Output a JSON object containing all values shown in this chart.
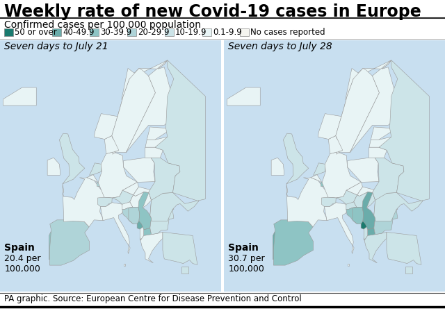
{
  "title": "Weekly rate of new Covid-19 cases in Europe",
  "subtitle": "Confirmed cases per 100,000 population",
  "legend_labels": [
    "50 or over",
    "40-49.9",
    "30-39.9",
    "20-29.9",
    "10-19.9",
    "0.1-9.9",
    "No cases reported"
  ],
  "legend_colors": [
    "#1a7a6e",
    "#6aacaa",
    "#8ec4c4",
    "#afd4d8",
    "#cce4e8",
    "#e8f4f5",
    "#f5f5f0"
  ],
  "map1_title": "Seven days to July 21",
  "map2_title": "Seven days to July 28",
  "map1_spain_label": "Spain",
  "map1_spain_stat": "20.4 per\n100,000",
  "map2_spain_label": "Spain",
  "map2_spain_stat": "30.7 per\n100,000",
  "source": "PA graphic. Source: European Centre for Disease Prevention and Control",
  "bg_color": "#ffffff",
  "map_bg_color": "#c8dff0",
  "title_fontsize": 17,
  "subtitle_fontsize": 10,
  "legend_fontsize": 8.5,
  "map_title_fontsize": 10,
  "source_fontsize": 8.5,
  "rate_to_color": {
    "50+": "#1a7a6e",
    "40-49": "#6aacaa",
    "30-39": "#8ec4c4",
    "20-29": "#afd4d8",
    "10-19": "#cce4e8",
    "0-9": "#e8f4f5",
    "none": "#f0f0eb"
  },
  "countries_july21": {
    "Iceland": "0-9",
    "UK": "10-19",
    "Ireland": "0-9",
    "Portugal": "30-39",
    "Spain": "20-29",
    "France": "0-9",
    "Belgium": "0-9",
    "Netherlands": "10-19",
    "Luxembourg": "20-29",
    "Germany": "0-9",
    "Switzerland": "10-19",
    "Austria": "10-19",
    "Italy": "0-9",
    "Denmark": "0-9",
    "Norway": "0-9",
    "Sweden": "0-9",
    "Finland": "0-9",
    "Estonia": "0-9",
    "Latvia": "0-9",
    "Lithuania": "0-9",
    "Poland": "0-9",
    "CzechRep": "0-9",
    "Slovakia": "0-9",
    "Hungary": "0-9",
    "Slovenia": "0-9",
    "Croatia": "20-29",
    "BosniaHerz": "20-29",
    "Serbia": "30-39",
    "Montenegro": "40-49",
    "Kosovo": "40-49",
    "NorthMacedonia": "30-39",
    "Albania": "0-9",
    "Greece": "0-9",
    "Romania": "10-19",
    "Bulgaria": "10-19",
    "Moldova": "10-19",
    "Ukraine": "10-19",
    "Belarus": "10-19",
    "Russia": "10-19",
    "Turkey": "10-19",
    "Cyprus": "10-19",
    "Malta": "0-9"
  },
  "countries_july28": {
    "Iceland": "0-9",
    "UK": "10-19",
    "Ireland": "0-9",
    "Portugal": "40-49",
    "Spain": "30-39",
    "France": "0-9",
    "Belgium": "0-9",
    "Netherlands": "10-19",
    "Luxembourg": "30-39",
    "Germany": "0-9",
    "Switzerland": "10-19",
    "Austria": "10-19",
    "Italy": "0-9",
    "Denmark": "0-9",
    "Norway": "0-9",
    "Sweden": "0-9",
    "Finland": "0-9",
    "Estonia": "0-9",
    "Latvia": "0-9",
    "Lithuania": "0-9",
    "Poland": "0-9",
    "CzechRep": "0-9",
    "Slovakia": "0-9",
    "Hungary": "10-19",
    "Slovenia": "10-19",
    "Croatia": "30-39",
    "BosniaHerz": "30-39",
    "Serbia": "40-49",
    "Montenegro": "50+",
    "Kosovo": "50+",
    "NorthMacedonia": "40-49",
    "Albania": "10-19",
    "Greece": "10-19",
    "Romania": "20-29",
    "Bulgaria": "20-29",
    "Moldova": "10-19",
    "Ukraine": "10-19",
    "Belarus": "10-19",
    "Russia": "10-19",
    "Turkey": "10-19",
    "Cyprus": "10-19",
    "Malta": "0-9"
  }
}
